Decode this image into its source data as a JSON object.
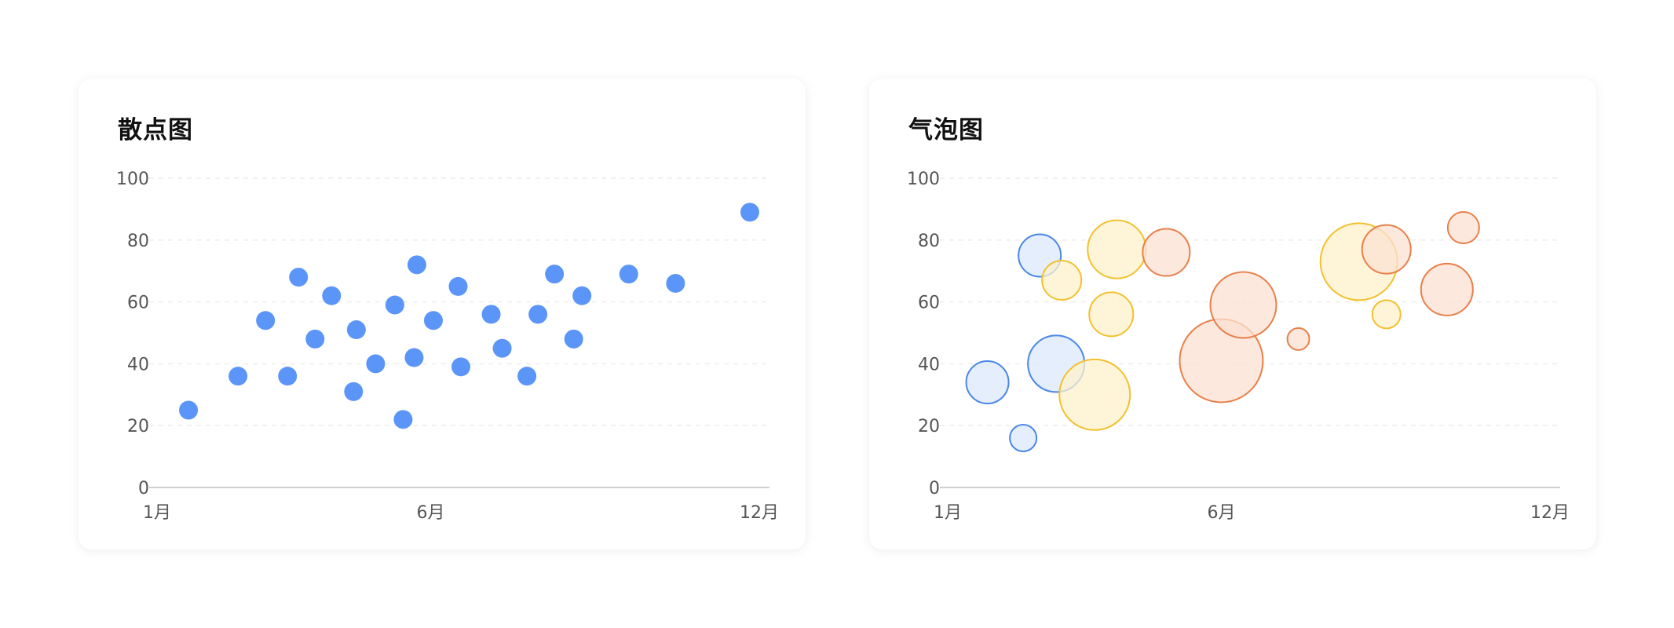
{
  "charts": [
    {
      "id": "scatter",
      "title": "散点图",
      "chart_data": {
        "type": "scatter",
        "title": "散点图",
        "xlabel": "",
        "ylabel": "",
        "x_ticks": [
          "1月",
          "6月",
          "12月"
        ],
        "y_ticks": [
          "0",
          "20",
          "40",
          "60",
          "80",
          "100"
        ],
        "xlim": [
          1,
          12
        ],
        "ylim": [
          0,
          100
        ],
        "grid": true,
        "color": "#5b95f7",
        "points": [
          {
            "x": 1.6,
            "y": 25
          },
          {
            "x": 2.5,
            "y": 36
          },
          {
            "x": 3.0,
            "y": 54
          },
          {
            "x": 3.4,
            "y": 36
          },
          {
            "x": 3.6,
            "y": 68
          },
          {
            "x": 3.9,
            "y": 48
          },
          {
            "x": 4.2,
            "y": 62
          },
          {
            "x": 4.6,
            "y": 31
          },
          {
            "x": 4.65,
            "y": 51
          },
          {
            "x": 5.0,
            "y": 40
          },
          {
            "x": 5.35,
            "y": 59
          },
          {
            "x": 5.5,
            "y": 22
          },
          {
            "x": 5.7,
            "y": 42
          },
          {
            "x": 5.75,
            "y": 72
          },
          {
            "x": 6.05,
            "y": 54
          },
          {
            "x": 6.5,
            "y": 65
          },
          {
            "x": 6.55,
            "y": 39
          },
          {
            "x": 7.1,
            "y": 56
          },
          {
            "x": 7.3,
            "y": 45
          },
          {
            "x": 7.75,
            "y": 36
          },
          {
            "x": 7.95,
            "y": 56
          },
          {
            "x": 8.25,
            "y": 69
          },
          {
            "x": 8.6,
            "y": 48
          },
          {
            "x": 8.75,
            "y": 62
          },
          {
            "x": 9.6,
            "y": 69
          },
          {
            "x": 10.45,
            "y": 66
          },
          {
            "x": 11.8,
            "y": 89
          }
        ]
      }
    },
    {
      "id": "bubble",
      "title": "气泡图",
      "chart_data": {
        "type": "bubble",
        "title": "气泡图",
        "xlabel": "",
        "ylabel": "",
        "x_ticks": [
          "1月",
          "6月",
          "12月"
        ],
        "y_ticks": [
          "0",
          "20",
          "40",
          "60",
          "80",
          "100"
        ],
        "xlim": [
          1,
          12
        ],
        "ylim": [
          0,
          100
        ],
        "grid": true,
        "series": [
          {
            "color": "#4a86e8",
            "fill": "#dce8fb",
            "points": [
              {
                "x": 1.75,
                "y": 34,
                "size": 27
              },
              {
                "x": 2.4,
                "y": 16,
                "size": 17
              },
              {
                "x": 2.7,
                "y": 75,
                "size": 27
              },
              {
                "x": 3.0,
                "y": 40,
                "size": 36
              }
            ]
          },
          {
            "color": "#f2c12e",
            "fill": "#fdf1cc",
            "points": [
              {
                "x": 3.1,
                "y": 67,
                "size": 25
              },
              {
                "x": 3.7,
                "y": 30,
                "size": 45
              },
              {
                "x": 4.0,
                "y": 56,
                "size": 28
              },
              {
                "x": 4.1,
                "y": 77,
                "size": 37
              },
              {
                "x": 8.5,
                "y": 73,
                "size": 49
              },
              {
                "x": 9.0,
                "y": 56,
                "size": 18
              }
            ]
          },
          {
            "color": "#e8804a",
            "fill": "#fbe0d2",
            "points": [
              {
                "x": 5.0,
                "y": 76,
                "size": 30
              },
              {
                "x": 6.0,
                "y": 41,
                "size": 53
              },
              {
                "x": 6.4,
                "y": 59,
                "size": 42
              },
              {
                "x": 7.4,
                "y": 48,
                "size": 14
              },
              {
                "x": 9.0,
                "y": 77,
                "size": 31
              },
              {
                "x": 10.1,
                "y": 64,
                "size": 33
              },
              {
                "x": 10.4,
                "y": 84,
                "size": 20
              }
            ]
          }
        ]
      }
    }
  ]
}
